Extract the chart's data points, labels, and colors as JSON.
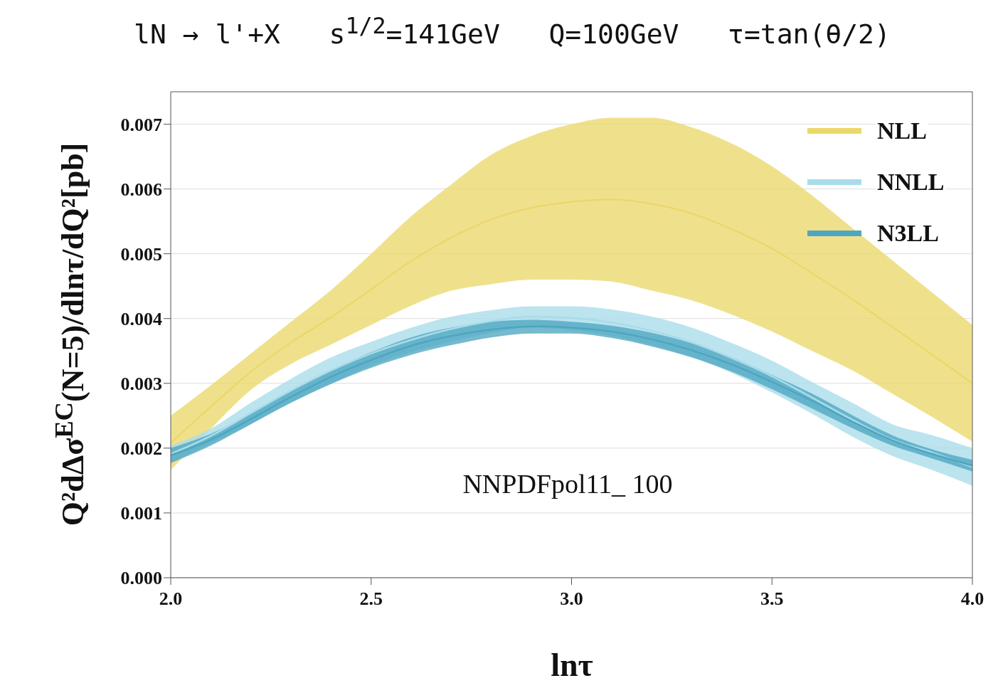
{
  "chart_data": {
    "type": "line",
    "title": "lN → l'+X   s$^{1/2}$=141GeV   Q=100GeV   τ=tan(θ/2)",
    "xlabel": "lnτ",
    "ylabel": "Q²dΔσ$^{EC}$(N=5)/dlnτ/dQ²[pb]",
    "x": [
      2.0,
      2.1,
      2.2,
      2.3,
      2.4,
      2.5,
      2.6,
      2.7,
      2.8,
      2.9,
      3.0,
      3.1,
      3.2,
      3.3,
      3.4,
      3.5,
      3.6,
      3.7,
      3.8,
      3.9,
      4.0
    ],
    "series": [
      {
        "name": "NLL",
        "color": "#ebd86b",
        "values": [
          0.00208,
          0.00264,
          0.00318,
          0.00363,
          0.00402,
          0.00445,
          0.00489,
          0.00525,
          0.00553,
          0.00571,
          0.0058,
          0.00584,
          0.00577,
          0.00562,
          0.00538,
          0.00508,
          0.0047,
          0.0043,
          0.00387,
          0.00344,
          0.003
        ],
        "lower": [
          0.00166,
          0.0023,
          0.0029,
          0.0033,
          0.0036,
          0.0039,
          0.0042,
          0.00443,
          0.00453,
          0.0046,
          0.0046,
          0.00457,
          0.00443,
          0.00428,
          0.00406,
          0.0038,
          0.0035,
          0.0032,
          0.00284,
          0.00248,
          0.0021
        ],
        "upper": [
          0.0025,
          0.00297,
          0.00346,
          0.00395,
          0.00444,
          0.005,
          0.00558,
          0.00607,
          0.00653,
          0.00682,
          0.007,
          0.0071,
          0.0071,
          0.00695,
          0.0067,
          0.00635,
          0.0059,
          0.0054,
          0.0049,
          0.0044,
          0.0039
        ]
      },
      {
        "name": "NNLL",
        "color": "#a8dcea",
        "values": [
          0.00191,
          0.00219,
          0.00254,
          0.00289,
          0.0032,
          0.00346,
          0.00367,
          0.00384,
          0.00396,
          0.00403,
          0.00401,
          0.00394,
          0.00381,
          0.00363,
          0.00339,
          0.00311,
          0.00278,
          0.00244,
          0.00213,
          0.00193,
          0.00171
        ],
        "lower": [
          0.00177,
          0.00207,
          0.00237,
          0.0027,
          0.003,
          0.00327,
          0.00348,
          0.00364,
          0.00378,
          0.00386,
          0.00382,
          0.00373,
          0.00359,
          0.0034,
          0.00316,
          0.00286,
          0.00253,
          0.00218,
          0.00188,
          0.00166,
          0.00142
        ],
        "upper": [
          0.00204,
          0.0023,
          0.0027,
          0.00307,
          0.0034,
          0.00364,
          0.00386,
          0.00403,
          0.00413,
          0.00419,
          0.00419,
          0.00414,
          0.00403,
          0.00386,
          0.00362,
          0.00335,
          0.00302,
          0.0027,
          0.00237,
          0.0022,
          0.002
        ]
      },
      {
        "name": "N3LL",
        "color": "#4ea6c0",
        "values": [
          0.00189,
          0.00213,
          0.00245,
          0.00279,
          0.0031,
          0.00336,
          0.00358,
          0.00373,
          0.00383,
          0.00388,
          0.00386,
          0.0038,
          0.00368,
          0.00351,
          0.00329,
          0.00302,
          0.00273,
          0.00241,
          0.00212,
          0.00191,
          0.00173
        ],
        "lower": [
          0.00177,
          0.00204,
          0.00237,
          0.0027,
          0.00299,
          0.00324,
          0.00344,
          0.00359,
          0.00371,
          0.00377,
          0.00377,
          0.0037,
          0.00357,
          0.0034,
          0.00318,
          0.00291,
          0.00261,
          0.00231,
          0.00204,
          0.00184,
          0.00164
        ],
        "upper": [
          0.002,
          0.00222,
          0.00253,
          0.00288,
          0.0032,
          0.00348,
          0.00371,
          0.00386,
          0.00395,
          0.00398,
          0.00395,
          0.00389,
          0.00378,
          0.00362,
          0.0034,
          0.00313,
          0.00284,
          0.00251,
          0.0022,
          0.00198,
          0.00182
        ]
      }
    ],
    "annotations": [
      "NNPDFpol11_ 100"
    ],
    "xlim": [
      2.0,
      4.0
    ],
    "xticks": [
      {
        "value": 2,
        "label": "2.0"
      },
      {
        "value": 2.5,
        "label": "2.5"
      },
      {
        "value": 3,
        "label": "3.0"
      },
      {
        "value": 3.5,
        "label": "3.5"
      },
      {
        "value": 4,
        "label": "4.0"
      }
    ],
    "ylim": [
      0,
      0.0075
    ],
    "yticks": [
      {
        "value": 0,
        "label": "0.000"
      },
      {
        "value": 0.001,
        "label": "0.001"
      },
      {
        "value": 0.002,
        "label": "0.002"
      },
      {
        "value": 0.003,
        "label": "0.003"
      },
      {
        "value": 0.004,
        "label": "0.004"
      },
      {
        "value": 0.005,
        "label": "0.005"
      },
      {
        "value": 0.006,
        "label": "0.006"
      },
      {
        "value": 0.007,
        "label": "0.007"
      }
    ],
    "grid": "y",
    "legend": "top right"
  }
}
